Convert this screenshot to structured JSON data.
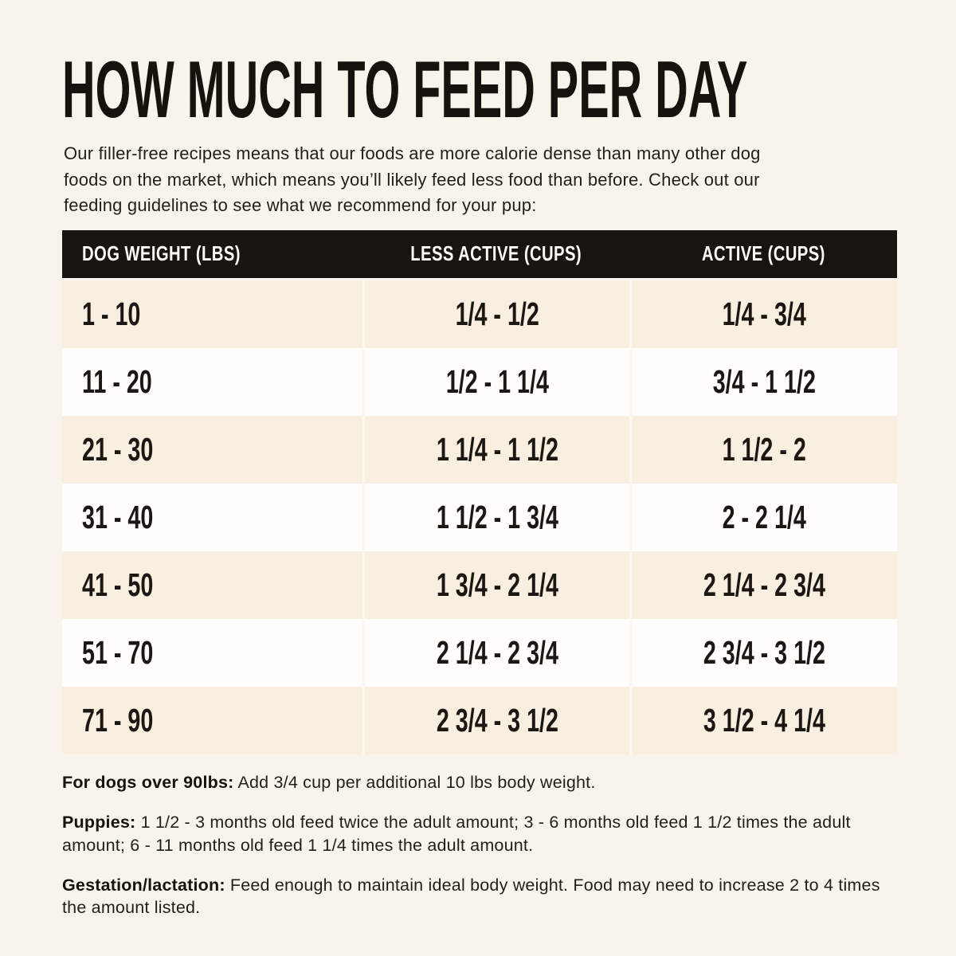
{
  "page": {
    "title": "HOW MUCH TO FEED PER DAY",
    "intro": "Our filler-free recipes means that our foods are more calorie dense than many other dog\nfoods on the market, which means you’ll likely feed less food than before. Check out our\nfeeding guidelines to see what we recommend for your pup:"
  },
  "colors": {
    "background": "#f8f4ec",
    "header_bg": "#1a1410",
    "header_text": "#fdfcf9",
    "row_cream": "#f8efe1",
    "row_white": "#fffefd",
    "text": "#1e1a16"
  },
  "table": {
    "headers": [
      "DOG WEIGHT (LBS)",
      "LESS ACTIVE (CUPS)",
      "ACTIVE (CUPS)"
    ],
    "rows": [
      {
        "weight": "1 - 10",
        "less_active": "1/4 - 1/2",
        "active": "1/4 - 3/4"
      },
      {
        "weight": "11 - 20",
        "less_active": "1/2 - 1 1/4",
        "active": "3/4 - 1 1/2"
      },
      {
        "weight": "21 - 30",
        "less_active": "1 1/4 - 1 1/2",
        "active": "1 1/2 - 2"
      },
      {
        "weight": "31 - 40",
        "less_active": "1 1/2 - 1 3/4",
        "active": "2 - 2 1/4"
      },
      {
        "weight": "41 - 50",
        "less_active": "1 3/4 - 2 1/4",
        "active": "2 1/4 - 2 3/4"
      },
      {
        "weight": "51 - 70",
        "less_active": "2 1/4 - 2 3/4",
        "active": "2 3/4 - 3 1/2"
      },
      {
        "weight": "71 - 90",
        "less_active": "2 3/4 - 3 1/2",
        "active": "3 1/2 - 4 1/4"
      }
    ]
  },
  "notes": [
    {
      "label": "For dogs over 90lbs:",
      "text": " Add 3/4 cup per additional 10 lbs body weight."
    },
    {
      "label": "Puppies:",
      "text": " 1 1/2 - 3 months old feed twice the adult amount; 3 - 6 months old feed 1 1/2 times the adult amount; 6 - 11 months old feed 1 1/4 times the adult amount."
    },
    {
      "label": "Gestation/lactation:",
      "text": " Feed enough to maintain ideal body weight. Food may need to increase 2 to 4 times the amount listed."
    }
  ]
}
